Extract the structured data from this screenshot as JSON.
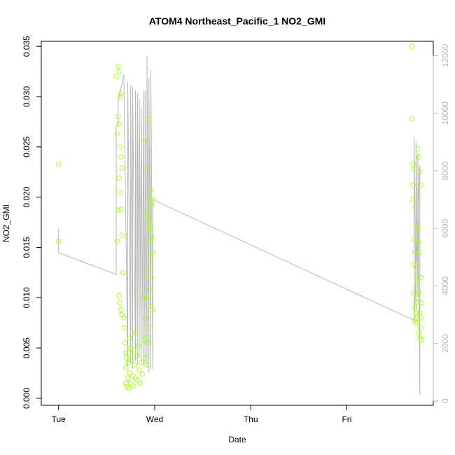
{
  "chart_data": {
    "type": "scatter",
    "title": "ATOM4 Northeast_Pacific_1 NO2_GMI",
    "xlabel": "Date",
    "ylabel": "NO2_GMI",
    "x_ticks": [
      "Tue",
      "Wed",
      "Thu",
      "Fri"
    ],
    "x_tick_days": [
      0,
      1,
      2,
      3
    ],
    "xlim": [
      -0.18,
      3.9
    ],
    "ylim": [
      -0.0007,
      0.0355
    ],
    "y_ticks": [
      "0.000",
      "0.005",
      "0.010",
      "0.015",
      "0.020",
      "0.025",
      "0.030",
      "0.035"
    ],
    "y_tick_values": [
      0,
      0.005,
      0.01,
      0.015,
      0.02,
      0.025,
      0.03,
      0.035
    ],
    "y2lim": [
      -150,
      12500
    ],
    "y2_ticks": [
      "0",
      "2000",
      "4000",
      "6000",
      "8000",
      "10000",
      "12000"
    ],
    "y2_tick_values": [
      0,
      2000,
      4000,
      6000,
      8000,
      10000,
      12000
    ],
    "point_color": "#aaff22",
    "trace_color": "#b8b8b8",
    "series": [
      {
        "kind": "points",
        "x": [
          0.0,
          0.0,
          0.6,
          0.61,
          0.61,
          0.62,
          0.62,
          0.62,
          0.63,
          0.63,
          0.63,
          0.63,
          0.64,
          0.64,
          0.64,
          0.64,
          0.65,
          0.65,
          0.65,
          0.65,
          0.66,
          0.66,
          0.66,
          0.67,
          0.68,
          0.69,
          0.69,
          0.7,
          0.7,
          0.7,
          0.71,
          0.71,
          0.72,
          0.72,
          0.73,
          0.73,
          0.74,
          0.74,
          0.75,
          0.75,
          0.76,
          0.77,
          0.78,
          0.78,
          0.79,
          0.8,
          0.8,
          0.81,
          0.82,
          0.83,
          0.84,
          0.85,
          0.86,
          0.87,
          0.88,
          0.89,
          0.89,
          0.9,
          0.9,
          0.91,
          0.91,
          0.92,
          0.92,
          0.92,
          0.93,
          0.93,
          0.93,
          0.94,
          0.94,
          0.94,
          0.94,
          0.95,
          0.95,
          0.95,
          0.95,
          0.96,
          0.96,
          0.96,
          0.96,
          0.97,
          0.97,
          0.97,
          0.98,
          0.98,
          0.98,
          3.68,
          3.68,
          3.69,
          3.69,
          3.69,
          3.7,
          3.7,
          3.7,
          3.7,
          3.71,
          3.71,
          3.71,
          3.71,
          3.72,
          3.72,
          3.72,
          3.72,
          3.73,
          3.73,
          3.73,
          3.73,
          3.74,
          3.74,
          3.74,
          3.74,
          3.75,
          3.75,
          3.75,
          3.75,
          3.76,
          3.76,
          3.76,
          3.76,
          3.77,
          3.77,
          3.77,
          3.77,
          3.78,
          3.78
        ],
        "y": [
          0.0233,
          0.0156,
          0.032,
          0.0263,
          0.0156,
          0.033,
          0.028,
          0.0187,
          0.0325,
          0.0273,
          0.0219,
          0.0102,
          0.03,
          0.025,
          0.0205,
          0.0095,
          0.0303,
          0.024,
          0.0188,
          0.0088,
          0.0229,
          0.0162,
          0.0083,
          0.0125,
          0.008,
          0.007,
          0.0055,
          0.0045,
          0.003,
          0.0015,
          0.004,
          0.0012,
          0.0035,
          0.002,
          0.0045,
          0.001,
          0.006,
          0.0025,
          0.005,
          0.0015,
          0.0038,
          0.0022,
          0.0048,
          0.0012,
          0.0033,
          0.0065,
          0.002,
          0.0042,
          0.0018,
          0.0052,
          0.0028,
          0.0015,
          0.0036,
          0.0024,
          0.0058,
          0.0256,
          0.01,
          0.012,
          0.004,
          0.0228,
          0.008,
          0.0185,
          0.006,
          0.0033,
          0.018,
          0.01,
          0.0055,
          0.0278,
          0.017,
          0.013,
          0.007,
          0.02,
          0.0175,
          0.0155,
          0.0108,
          0.0207,
          0.0168,
          0.014,
          0.0092,
          0.0192,
          0.016,
          0.012,
          0.0197,
          0.0145,
          0.0088,
          0.035,
          0.0278,
          0.0233,
          0.0212,
          0.0198,
          0.0228,
          0.0158,
          0.0133,
          0.0105,
          0.019,
          0.0145,
          0.009,
          0.0078,
          0.0122,
          0.0095,
          0.0085,
          0.0075,
          0.017,
          0.013,
          0.01,
          0.008,
          0.0248,
          0.0168,
          0.0115,
          0.0075,
          0.024,
          0.0155,
          0.0105,
          0.0065,
          0.0225,
          0.0145,
          0.0085,
          0.006,
          0.0212,
          0.012,
          0.008,
          0.007,
          0.0095,
          0.0058
        ]
      },
      {
        "kind": "trace",
        "x": [
          0.0,
          0.0,
          0.6,
          0.6,
          0.62,
          0.62,
          0.68,
          0.68,
          0.72,
          0.72,
          0.75,
          0.75,
          0.77,
          0.77,
          0.8,
          0.8,
          0.82,
          0.82,
          0.84,
          0.84,
          0.86,
          0.86,
          0.88,
          0.88,
          0.9,
          0.9,
          0.92,
          0.92,
          0.94,
          0.94,
          0.96,
          0.96,
          0.98,
          0.98,
          3.7,
          3.7,
          3.72,
          3.72,
          3.74,
          3.74,
          3.76,
          3.76,
          3.7
        ],
        "y": [
          6000,
          5150,
          4400,
          9550,
          9550,
          10400,
          11350,
          11200,
          1200,
          11100,
          1300,
          11000,
          1100,
          10900,
          1400,
          10800,
          1250,
          10700,
          1500,
          10500,
          1350,
          10200,
          1200,
          10800,
          1300,
          10800,
          1200,
          12000,
          1000,
          11200,
          1100,
          11500,
          1100,
          7000,
          2800,
          9200,
          3200,
          9000,
          3600,
          8600,
          200,
          8200,
          2750
        ]
      }
    ]
  }
}
